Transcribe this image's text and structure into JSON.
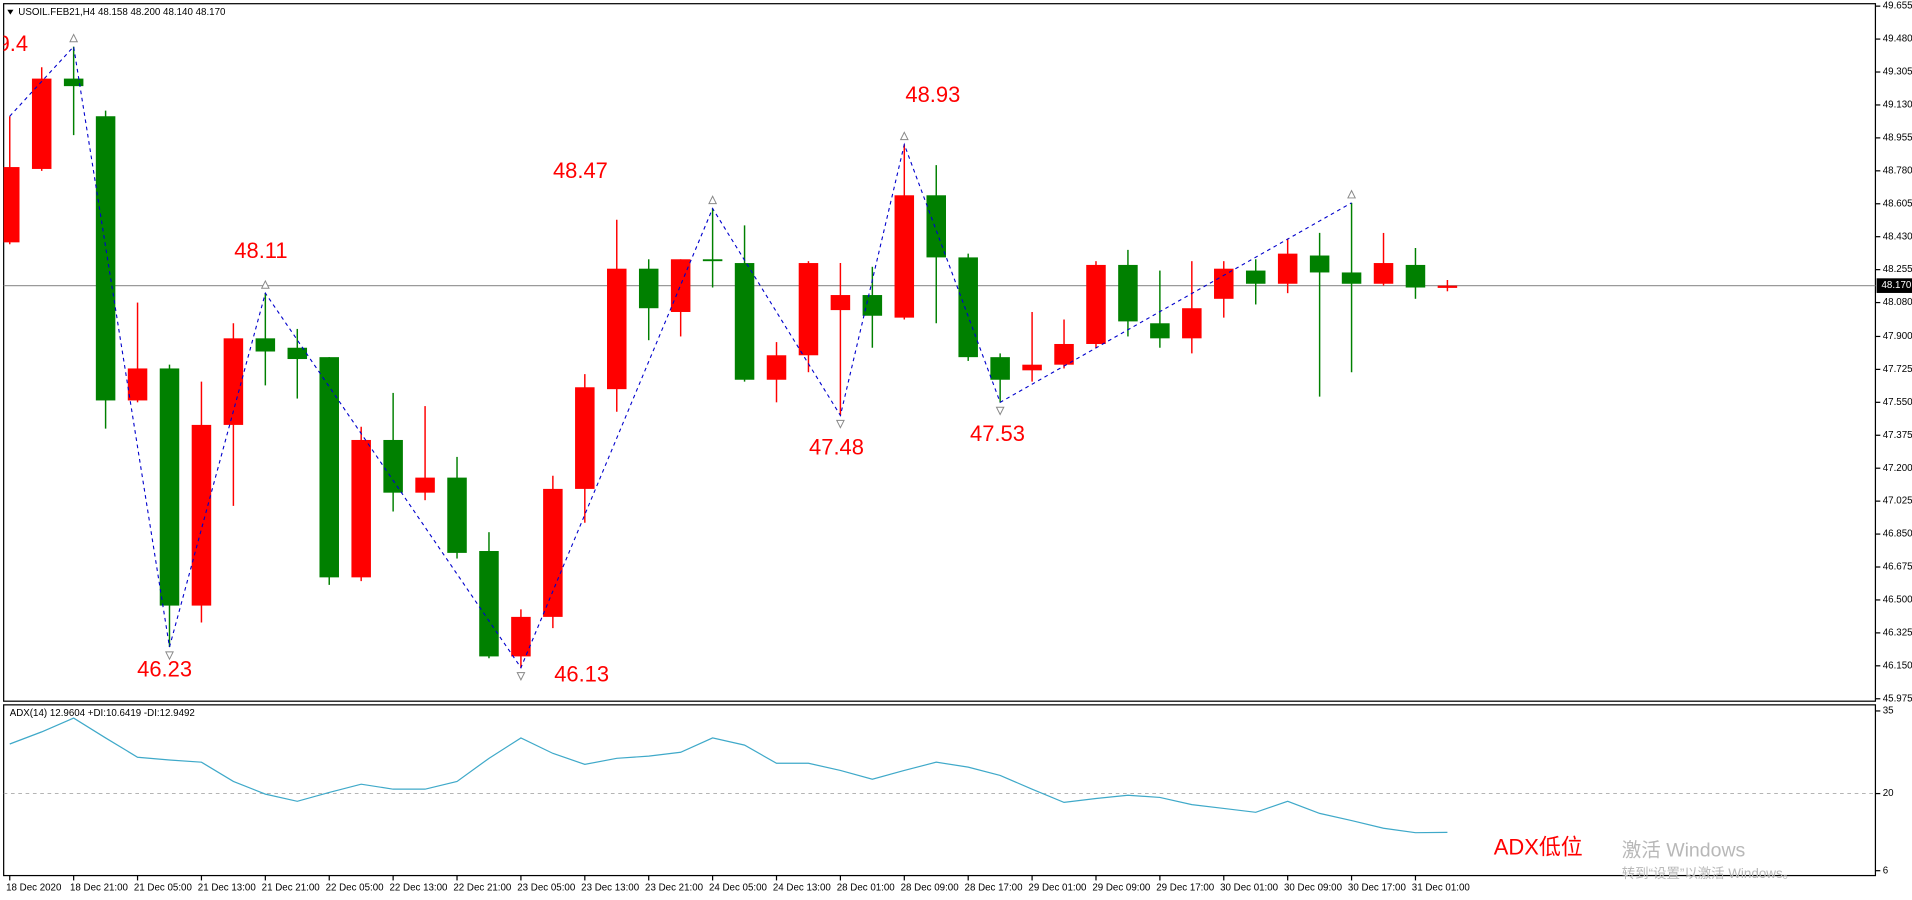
{
  "header": {
    "symbol": "USOIL.FEB21,H4",
    "open": "48.158",
    "high": "48.200",
    "low": "48.140",
    "close": "48.170"
  },
  "chart_data": [
    {
      "type": "candlestick",
      "categories": [
        "18 Dec 2020",
        null,
        "18 Dec 21:00",
        null,
        "21 Dec 05:00",
        null,
        "21 Dec 13:00",
        null,
        "21 Dec 21:00",
        null,
        "22 Dec 05:00",
        null,
        "22 Dec 13:00",
        null,
        "22 Dec 21:00",
        null,
        "23 Dec 05:00",
        null,
        "23 Dec 13:00",
        null,
        "23 Dec 21:00",
        null,
        "24 Dec 05:00",
        null,
        "24 Dec 13:00",
        null,
        "28 Dec 01:00",
        null,
        "28 Dec 09:00",
        null,
        "28 Dec 17:00",
        null,
        "29 Dec 01:00",
        null,
        "29 Dec 09:00",
        null,
        "29 Dec 17:00",
        null,
        "30 Dec 01:00",
        null,
        "30 Dec 09:00",
        null,
        "30 Dec 17:00",
        null,
        "31 Dec 01:00",
        null
      ],
      "open": [
        48.4,
        48.79,
        49.27,
        49.07,
        47.56,
        47.73,
        46.47,
        47.43,
        47.89,
        47.84,
        47.79,
        46.62,
        47.35,
        47.07,
        47.15,
        46.76,
        46.2,
        46.41,
        47.09,
        47.62,
        48.26,
        48.03,
        48.31,
        48.29,
        47.67,
        47.8,
        48.04,
        48.12,
        48.0,
        48.65,
        48.32,
        47.79,
        47.72,
        47.75,
        47.86,
        48.28,
        47.97,
        47.89,
        48.1,
        48.25,
        48.18,
        48.33,
        48.24,
        48.18,
        48.28,
        48.158
      ],
      "high": [
        49.07,
        49.33,
        49.44,
        49.1,
        48.08,
        47.75,
        47.66,
        47.97,
        48.13,
        47.94,
        47.79,
        47.42,
        47.6,
        47.53,
        47.26,
        46.86,
        46.45,
        47.16,
        47.7,
        48.52,
        48.31,
        48.31,
        48.58,
        48.49,
        47.87,
        48.3,
        48.29,
        48.27,
        48.92,
        48.81,
        48.34,
        47.81,
        48.03,
        47.99,
        48.3,
        48.36,
        48.25,
        48.3,
        48.3,
        48.31,
        48.42,
        48.45,
        48.61,
        48.45,
        48.37,
        48.2
      ],
      "low": [
        48.39,
        48.78,
        48.97,
        47.41,
        47.55,
        46.25,
        46.38,
        47.0,
        47.64,
        47.57,
        46.58,
        46.6,
        46.97,
        47.03,
        46.72,
        46.19,
        46.14,
        46.35,
        46.91,
        47.5,
        47.88,
        47.9,
        48.16,
        47.66,
        47.55,
        47.71,
        47.48,
        47.84,
        47.99,
        47.97,
        47.77,
        47.55,
        47.66,
        47.73,
        47.84,
        47.9,
        47.84,
        47.81,
        48.0,
        48.07,
        48.13,
        47.58,
        47.71,
        48.17,
        48.1,
        48.14
      ],
      "close": [
        48.8,
        49.27,
        49.23,
        47.56,
        47.73,
        46.47,
        47.43,
        47.89,
        47.82,
        47.78,
        46.62,
        47.35,
        47.07,
        47.15,
        46.75,
        46.2,
        46.41,
        47.09,
        47.63,
        48.26,
        48.05,
        48.31,
        48.3,
        47.67,
        47.8,
        48.29,
        48.12,
        48.01,
        48.65,
        48.32,
        47.79,
        47.67,
        47.75,
        47.86,
        48.28,
        47.98,
        47.89,
        48.05,
        48.26,
        48.18,
        48.34,
        48.24,
        48.18,
        48.29,
        48.16,
        48.17
      ],
      "up_color": "#ff0000",
      "down_color": "#008000",
      "zigzag_color": "#0000cc",
      "ylim": [
        45.975,
        49.655
      ],
      "yticks": [
        45.975,
        {
          "value": 46.15,
          "label": "46.150"
        },
        46.325,
        {
          "value": 46.5,
          "label": "46.500"
        },
        46.675,
        {
          "value": 46.85,
          "label": "46.850"
        },
        47.025,
        {
          "value": 47.2,
          "label": "47.200"
        },
        47.375,
        {
          "value": 47.55,
          "label": "47.550"
        },
        47.725,
        {
          "value": 47.9,
          "label": "47.900"
        },
        {
          "value": 48.08,
          "label": "48.080"
        },
        48.255,
        {
          "value": 48.43,
          "label": "48.430"
        },
        48.605,
        {
          "value": 48.78,
          "label": "48.780"
        },
        48.955,
        {
          "value": 49.13,
          "label": "49.130"
        },
        49.305,
        {
          "value": 49.48,
          "label": "49.480"
        },
        49.655
      ],
      "annotations": [
        "9.4",
        "46.23",
        "48.11",
        "46.13",
        "48.47",
        "47.48",
        "48.93",
        "47.53"
      ]
    },
    {
      "type": "line",
      "title": "ADX(14) 12.9604 +DI:10.6419 -DI:12.9492",
      "color": "#3fa9c9",
      "values": [
        29.0,
        31.2,
        33.7,
        30.1,
        26.6,
        26.1,
        25.7,
        22.2,
        19.9,
        18.6,
        20.2,
        21.7,
        20.8,
        20.8,
        22.2,
        26.4,
        30.1,
        27.3,
        25.3,
        26.4,
        26.8,
        27.5,
        30.1,
        28.8,
        25.5,
        25.5,
        24.2,
        22.6,
        24.2,
        25.7,
        24.8,
        23.3,
        20.8,
        18.4,
        19.1,
        19.7,
        19.3,
        18.0,
        17.3,
        16.6,
        18.6,
        16.4,
        15.1,
        13.7,
        12.9,
        12.96
      ],
      "ylim": [
        6,
        35
      ],
      "yticks": [
        35,
        20,
        6
      ],
      "annotation": "ADX低位"
    }
  ],
  "watermark": {
    "title": "激活 Windows",
    "subtitle": "转到“设置”以激活 Windows。"
  }
}
